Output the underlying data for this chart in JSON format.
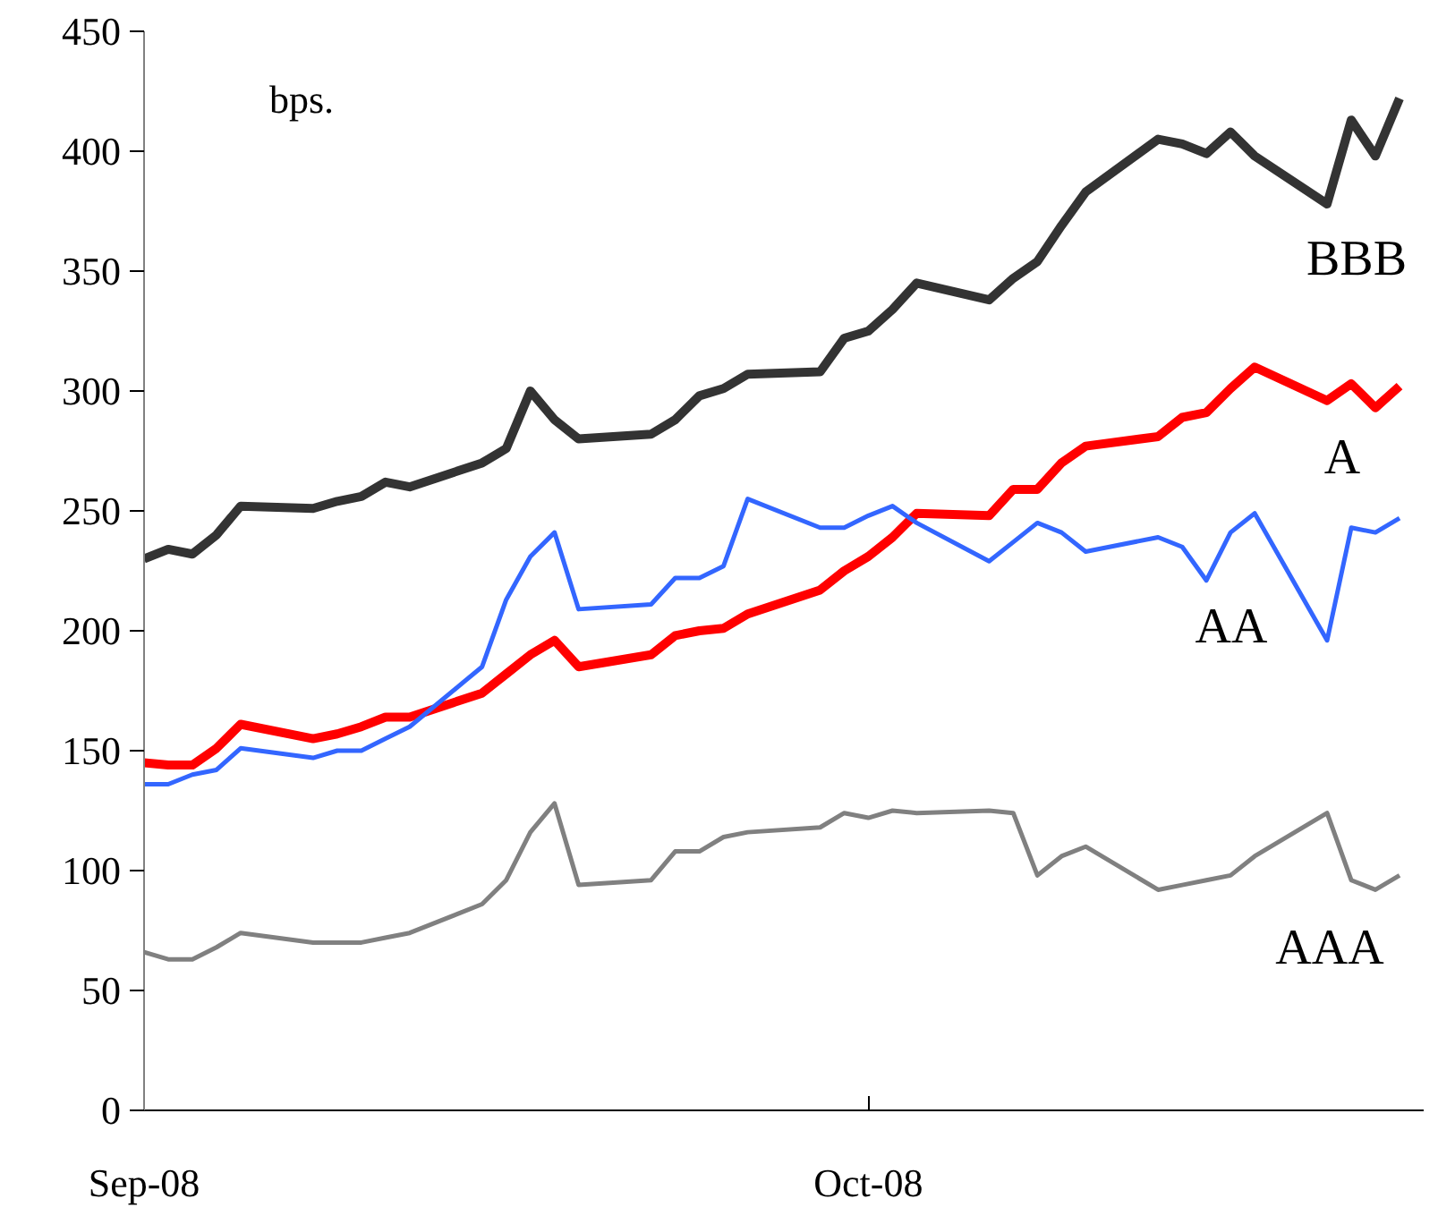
{
  "chart_data": {
    "type": "line",
    "annotations": [
      "bps."
    ],
    "x": [
      "2008-09-01",
      "2008-09-02",
      "2008-09-03",
      "2008-09-04",
      "2008-09-05",
      "2008-09-08",
      "2008-09-09",
      "2008-09-10",
      "2008-09-11",
      "2008-09-12",
      "2008-09-15",
      "2008-09-16",
      "2008-09-17",
      "2008-09-18",
      "2008-09-19",
      "2008-09-22",
      "2008-09-23",
      "2008-09-24",
      "2008-09-25",
      "2008-09-26",
      "2008-09-29",
      "2008-09-30",
      "2008-10-01",
      "2008-10-02",
      "2008-10-03",
      "2008-10-06",
      "2008-10-07",
      "2008-10-08",
      "2008-10-09",
      "2008-10-10",
      "2008-10-13",
      "2008-10-14",
      "2008-10-15",
      "2008-10-16",
      "2008-10-17",
      "2008-10-20",
      "2008-10-21",
      "2008-10-22",
      "2008-10-23"
    ],
    "series": [
      {
        "name": "BBB",
        "color": "#333333",
        "values": [
          230,
          234,
          232,
          240,
          252,
          251,
          254,
          256,
          262,
          260,
          270,
          276,
          300,
          288,
          280,
          282,
          288,
          298,
          301,
          307,
          308,
          322,
          325,
          334,
          345,
          338,
          347,
          354,
          369,
          383,
          405,
          403,
          399,
          408,
          398,
          378,
          413,
          398,
          422
        ]
      },
      {
        "name": "A",
        "color": "#ff0000",
        "values": [
          145,
          144,
          144,
          151,
          161,
          155,
          157,
          160,
          164,
          164,
          174,
          182,
          190,
          196,
          185,
          190,
          198,
          200,
          201,
          207,
          217,
          225,
          231,
          239,
          249,
          248,
          259,
          259,
          270,
          277,
          281,
          289,
          291,
          301,
          310,
          296,
          303,
          293,
          302
        ]
      },
      {
        "name": "AA",
        "color": "#3366ff",
        "values": [
          136,
          136,
          140,
          142,
          151,
          147,
          150,
          150,
          155,
          160,
          185,
          213,
          231,
          241,
          209,
          211,
          222,
          222,
          227,
          255,
          243,
          243,
          248,
          252,
          245,
          229,
          237,
          245,
          241,
          233,
          239,
          235,
          221,
          241,
          249,
          196,
          243,
          241,
          247
        ]
      },
      {
        "name": "AAA",
        "color": "#808080",
        "values": [
          66,
          63,
          63,
          68,
          74,
          70,
          70,
          70,
          72,
          74,
          86,
          96,
          116,
          128,
          94,
          96,
          108,
          108,
          114,
          116,
          118,
          124,
          122,
          125,
          124,
          125,
          124,
          98,
          106,
          110,
          92,
          94,
          96,
          98,
          106,
          124,
          96,
          92,
          98
        ]
      }
    ],
    "xlim": [
      "2008-09-01",
      "2008-10-24"
    ],
    "xticks": [
      {
        "value": "2008-09-01",
        "label": "Sep-08"
      },
      {
        "value": "2008-10-01",
        "label": "Oct-08"
      }
    ],
    "ylim": [
      0,
      450
    ],
    "yticks": [
      0,
      50,
      100,
      150,
      200,
      250,
      300,
      350,
      400,
      450
    ],
    "grid": false,
    "legend": false,
    "marker": "none",
    "line_style": "solid"
  }
}
